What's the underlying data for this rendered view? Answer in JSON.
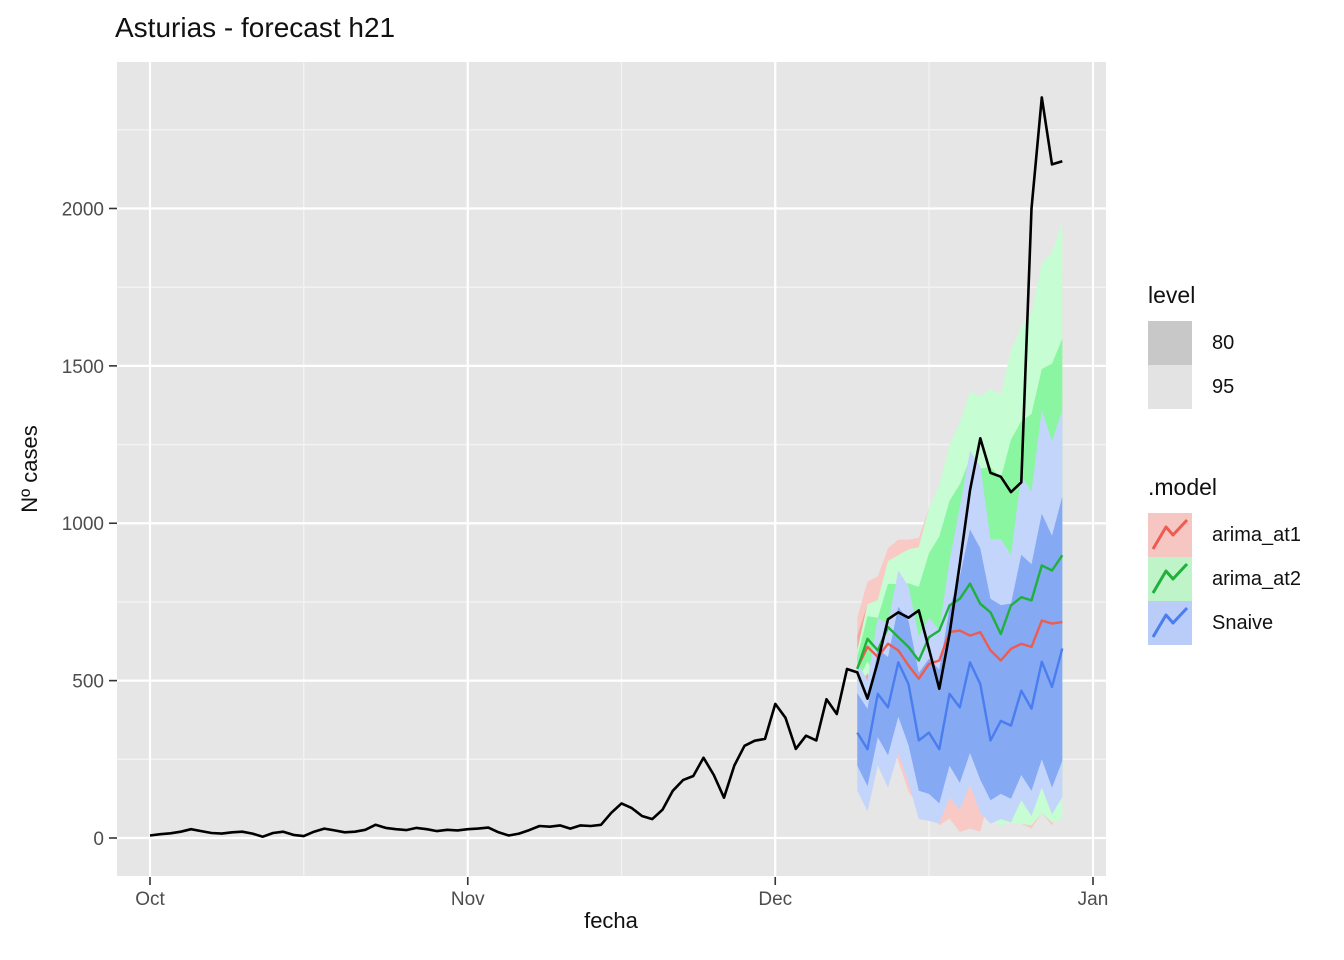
{
  "chart": {
    "title": "Asturias - forecast h21",
    "x_axis": {
      "title": "fecha"
    },
    "y_axis": {
      "title": "Nº cases"
    },
    "legend": {
      "level": {
        "title": "level",
        "items": [
          {
            "label": "80",
            "swatch_color": "#C8C8C8"
          },
          {
            "label": "95",
            "swatch_color": "#E3E3E3"
          }
        ]
      },
      "model": {
        "title": ".model",
        "items": [
          {
            "label": "arima_at1",
            "key_bg": "#F6C6C3",
            "line_color": "#EE5C50"
          },
          {
            "label": "arima_at2",
            "key_bg": "#BFF3C8",
            "line_color": "#1FB13C"
          },
          {
            "label": "Snaive",
            "key_bg": "#B9CDF8",
            "line_color": "#4A7DF0"
          }
        ]
      }
    }
  },
  "chart_data": {
    "type": "line",
    "title": "Asturias - forecast h21",
    "xlabel": "fecha",
    "ylabel": "Nº cases",
    "grid": true,
    "legend_position": "right",
    "colors": {
      "panel_bg": "#E6E6E6",
      "grid_major": "#FFFFFF",
      "grid_minor": "#F3F3F3",
      "axis_text": "#4D4D4D",
      "tick_mark": "#333333",
      "historical_line": "#000000"
    },
    "x_axis": {
      "tick_labels": [
        "Oct",
        "Nov",
        "Dec",
        "Jan"
      ],
      "tick_days": [
        0,
        31,
        61,
        92
      ],
      "minor_days": [
        15,
        46,
        76
      ]
    },
    "y_axis": {
      "tick_labels": [
        "0",
        "500",
        "1000",
        "1500",
        "2000"
      ],
      "tick_values": [
        0,
        500,
        1000,
        1500,
        2000
      ],
      "minor_values": [
        250,
        750,
        1250,
        1750,
        2250
      ],
      "range_shown": [
        -120,
        2465
      ]
    },
    "historical": {
      "name": "observed",
      "start_day": 0,
      "values": [
        8,
        12,
        15,
        20,
        28,
        22,
        16,
        14,
        18,
        20,
        14,
        4,
        16,
        20,
        10,
        6,
        20,
        30,
        24,
        18,
        20,
        26,
        42,
        32,
        28,
        25,
        32,
        28,
        22,
        26,
        24,
        28,
        30,
        33,
        18,
        8,
        14,
        25,
        38,
        36,
        40,
        30,
        40,
        38,
        42,
        80,
        110,
        95,
        70,
        60,
        90,
        150,
        184,
        197,
        255,
        200,
        128,
        230,
        293,
        309,
        315,
        426,
        382,
        283,
        325,
        310,
        441,
        394,
        537,
        526,
        443,
        560,
        695,
        717,
        700,
        723,
        600,
        474,
        648,
        871,
        1105,
        1270,
        1160,
        1148,
        1099,
        1130,
        2000,
        2353,
        2140,
        2150
      ]
    },
    "forecast_horizon": 21,
    "forecast_start_day": 69,
    "interval_levels": [
      80,
      95
    ],
    "forecasts": [
      {
        "name": "arima_at1",
        "line": "#EE5C50",
        "fill95": "#F9C9C5",
        "fill80": "#F5A79F",
        "mean": [
          540,
          607,
          575,
          617,
          596,
          548,
          506,
          553,
          564,
          654,
          659,
          643,
          654,
          596,
          564,
          601,
          617,
          607,
          691,
          681,
          686
        ],
        "hi95": [
          700,
          815,
          831,
          921,
          948,
          948,
          954,
          1049,
          1108,
          1246,
          1299,
          1331,
          1390,
          1380,
          1396,
          1481,
          1545,
          1583,
          1715,
          1753,
          1806
        ],
        "lo95": [
          380,
          399,
          319,
          313,
          244,
          148,
          100,
          80,
          40,
          62,
          19,
          30,
          20,
          150,
          135,
          60,
          45,
          30,
          80,
          40,
          110
        ],
        "hi80": [
          644,
          742,
          741,
          815,
          825,
          808,
          797,
          875,
          918,
          1039,
          1075,
          1090,
          1132,
          1106,
          1105,
          1173,
          1220,
          1241,
          1357,
          1378,
          1414
        ],
        "lo80": [
          436,
          472,
          409,
          419,
          367,
          288,
          215,
          231,
          210,
          269,
          243,
          196,
          176,
          186,
          175,
          129,
          114,
          127,
          125,
          116,
          142
        ]
      },
      {
        "name": "arima_at2",
        "line": "#1FB13C",
        "fill95": "#C6FDD3",
        "fill80": "#8BF6A1",
        "mean": [
          537,
          633,
          596,
          670,
          638,
          607,
          564,
          638,
          659,
          739,
          760,
          808,
          744,
          717,
          648,
          739,
          765,
          755,
          866,
          850,
          898
        ],
        "hi95": [
          597,
          743,
          756,
          880,
          898,
          917,
          924,
          1048,
          1119,
          1249,
          1320,
          1418,
          1404,
          1427,
          1408,
          1549,
          1625,
          1665,
          1826,
          1860,
          1958
        ],
        "lo95": [
          477,
          523,
          436,
          460,
          378,
          297,
          204,
          228,
          199,
          229,
          200,
          198,
          84,
          60,
          40,
          50,
          45,
          40,
          80,
          50,
          60
        ],
        "hi80": [
          576,
          705,
          700,
          807,
          807,
          809,
          798,
          905,
          958,
          1071,
          1124,
          1205,
          1173,
          1179,
          1142,
          1266,
          1324,
          1347,
          1490,
          1507,
          1587
        ],
        "lo80": [
          498,
          561,
          492,
          533,
          469,
          405,
          330,
          371,
          360,
          407,
          396,
          411,
          315,
          255,
          154,
          212,
          206,
          163,
          242,
          193,
          209
        ]
      },
      {
        "name": "Snaive",
        "line": "#4A7DF0",
        "fill95": "#C3D5FB",
        "fill80": "#85A9F3",
        "mean": [
          335,
          282,
          458,
          415,
          558,
          489,
          310,
          335,
          282,
          458,
          415,
          558,
          489,
          310,
          372,
          357,
          468,
          411,
          560,
          480,
          602
        ],
        "hi95": [
          560,
          500,
          700,
          680,
          850,
          800,
          640,
          700,
          660,
          880,
          1050,
          1230,
          1180,
          950,
          950,
          900,
          1150,
          1100,
          1360,
          1260,
          1360
        ],
        "lo95": [
          150,
          85,
          230,
          160,
          270,
          175,
          60,
          55,
          45,
          130,
          90,
          170,
          80,
          45,
          60,
          50,
          120,
          70,
          160,
          75,
          130
        ],
        "hi80": [
          460,
          410,
          600,
          575,
          735,
          690,
          525,
          570,
          535,
          730,
          830,
          980,
          920,
          760,
          740,
          745,
          900,
          870,
          1030,
          960,
          1085
        ],
        "lo80": [
          230,
          165,
          320,
          263,
          385,
          295,
          150,
          140,
          110,
          230,
          175,
          270,
          185,
          120,
          140,
          125,
          200,
          150,
          250,
          160,
          245
        ]
      }
    ]
  }
}
